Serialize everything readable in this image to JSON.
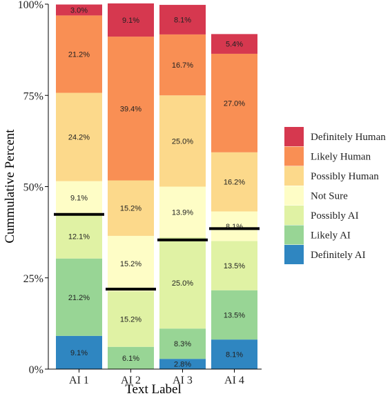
{
  "chart_data": {
    "type": "bar",
    "stacked": true,
    "title": "",
    "xlabel": "Text Label",
    "ylabel": "Cummulative Percent",
    "ylim": [
      0,
      100
    ],
    "yticks": [
      "0%",
      "25%",
      "50%",
      "75%",
      "100%"
    ],
    "categories": [
      "AI 1",
      "AI 2",
      "AI 3",
      "AI 4"
    ],
    "series": [
      {
        "name": "Definitely AI",
        "color": "#2f86c1",
        "values": [
          9.1,
          0,
          2.8,
          8.1
        ],
        "labels": [
          "9.1%",
          "",
          "2.8%",
          "8.1%"
        ]
      },
      {
        "name": "Likely AI",
        "color": "#98d595",
        "values": [
          21.2,
          6.1,
          8.3,
          13.5
        ],
        "labels": [
          "21.2%",
          "6.1%",
          "8.3%",
          "13.5%"
        ]
      },
      {
        "name": "Possibly AI",
        "color": "#e0f2a4",
        "values": [
          12.1,
          15.2,
          25.0,
          13.5
        ],
        "labels": [
          "12.1%",
          "15.2%",
          "25.0%",
          "13.5%"
        ]
      },
      {
        "name": "Not Sure",
        "color": "#fefdc6",
        "values": [
          9.1,
          15.2,
          13.9,
          8.1
        ],
        "labels": [
          "9.1%",
          "15.2%",
          "13.9%",
          "8.1%"
        ]
      },
      {
        "name": "Possibly Human",
        "color": "#fcd98b",
        "values": [
          24.2,
          15.2,
          25.0,
          16.2
        ],
        "labels": [
          "24.2%",
          "15.2%",
          "25.0%",
          "16.2%"
        ]
      },
      {
        "name": "Likely Human",
        "color": "#f98f54",
        "values": [
          21.2,
          39.4,
          16.7,
          27.0
        ],
        "labels": [
          "21.2%",
          "39.4%",
          "16.7%",
          "27.0%"
        ]
      },
      {
        "name": "Definitely Human",
        "color": "#d6384f",
        "values": [
          3.0,
          9.1,
          8.1,
          5.4
        ],
        "labels": [
          "3.0%",
          "9.1%",
          "8.1%",
          "5.4%"
        ]
      }
    ],
    "threshold_lines": [
      42.4,
      21.9,
      35.4,
      38.5
    ],
    "legend_position": "right",
    "legend_order": [
      "Definitely Human",
      "Likely Human",
      "Possibly Human",
      "Not Sure",
      "Possibly AI",
      "Likely AI",
      "Definitely AI"
    ],
    "grid": false
  }
}
